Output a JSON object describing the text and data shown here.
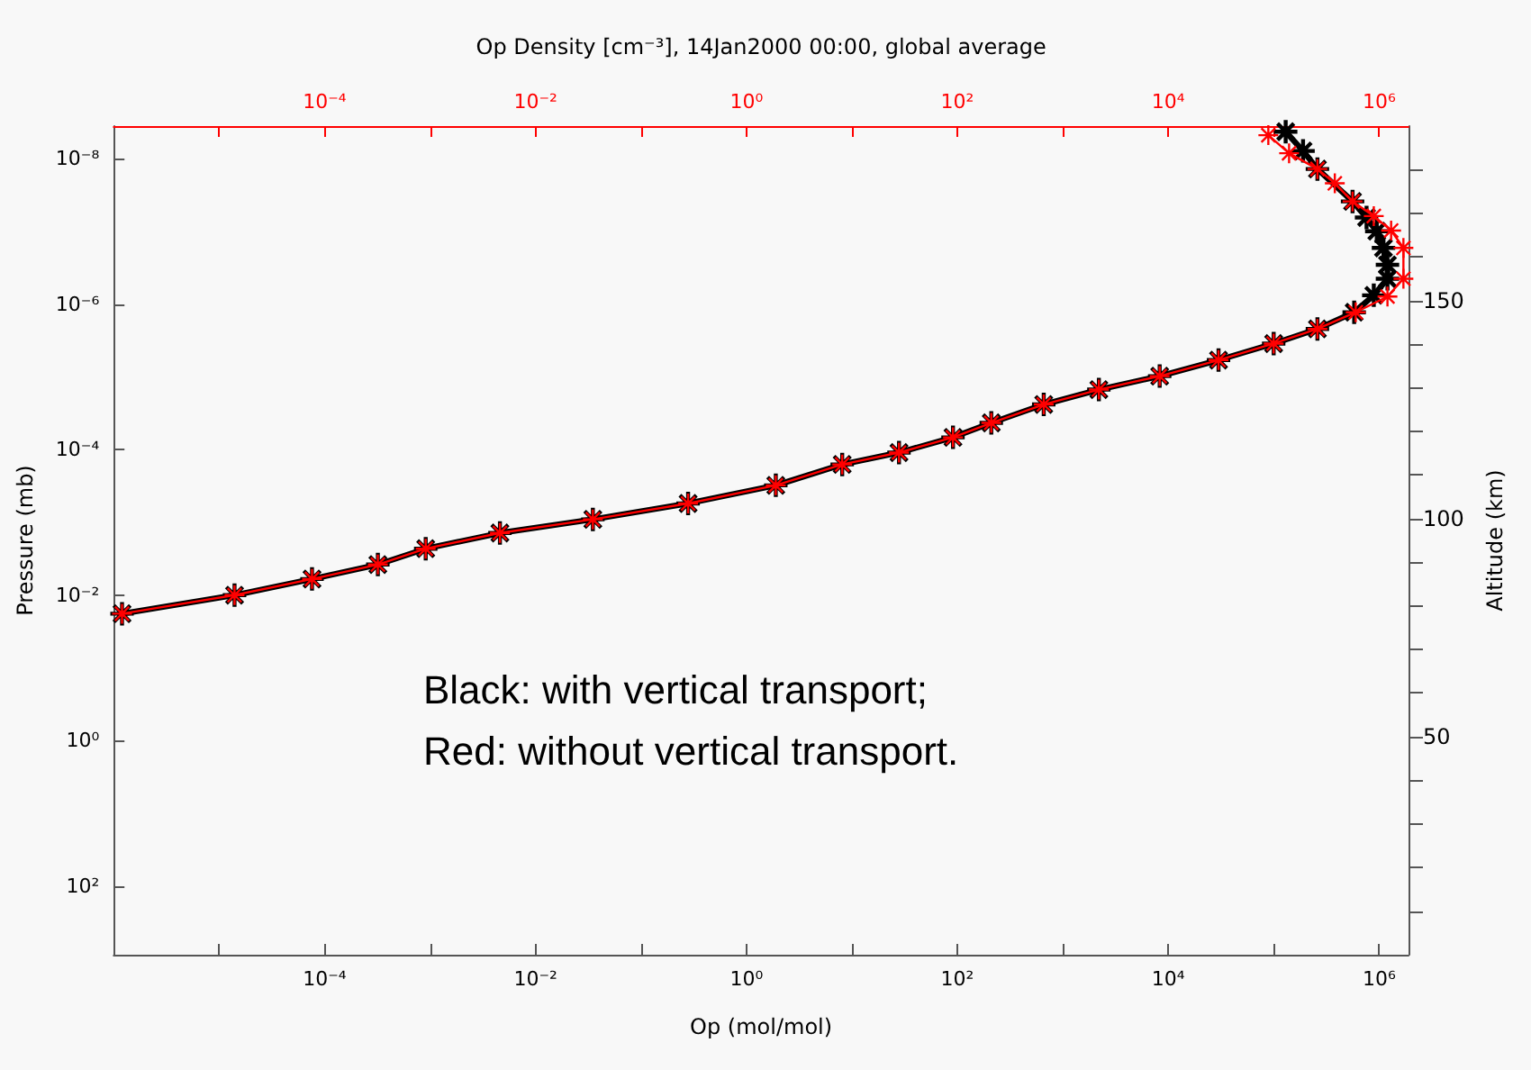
{
  "chart_data": {
    "type": "line",
    "x2label": "Op Density [cm⁻³], 14Jan2000 00:00, global average",
    "xlabel": "Op (mol/mol)",
    "ylabel": "Pressure (mb)",
    "y2label": "Altitude (km)",
    "annotations": [
      "Black: with vertical transport;",
      "Red: without vertical transport."
    ],
    "log": "xy",
    "marker": "cross",
    "line_style": "solid",
    "grid": false,
    "xlim": [
      1e-06,
      1900000
    ],
    "ylim": [
      870,
      3.6e-09
    ],
    "y2lim": [
      0,
      190
    ],
    "xticks": [
      {
        "value": 1e-05,
        "label": null
      },
      {
        "value": 0.0001,
        "label": "10⁻⁴"
      },
      {
        "value": 0.001,
        "label": null
      },
      {
        "value": 0.01,
        "label": "10⁻²"
      },
      {
        "value": 0.1,
        "label": null
      },
      {
        "value": 1,
        "label": "10⁰"
      },
      {
        "value": 10,
        "label": null
      },
      {
        "value": 100,
        "label": "10²"
      },
      {
        "value": 1000,
        "label": null
      },
      {
        "value": 10000,
        "label": "10⁴"
      },
      {
        "value": 100000,
        "label": null
      },
      {
        "value": 1000000,
        "label": "10⁶"
      }
    ],
    "yticks": [
      {
        "value": 1e-08,
        "label": "10⁻⁸"
      },
      {
        "value": 1e-06,
        "label": "10⁻⁶"
      },
      {
        "value": 0.0001,
        "label": "10⁻⁴"
      },
      {
        "value": 0.01,
        "label": "10⁻²"
      },
      {
        "value": 1,
        "label": "10⁰"
      },
      {
        "value": 100,
        "label": "10²"
      }
    ],
    "y2ticks": [
      {
        "value": 10,
        "label": null
      },
      {
        "value": 20,
        "label": null
      },
      {
        "value": 30,
        "label": null
      },
      {
        "value": 40,
        "label": null
      },
      50,
      {
        "value": 60,
        "label": null
      },
      {
        "value": 70,
        "label": null
      },
      {
        "value": 80,
        "label": null
      },
      {
        "value": 90,
        "label": null
      },
      100,
      {
        "value": 110,
        "label": null
      },
      {
        "value": 120,
        "label": null
      },
      {
        "value": 130,
        "label": null
      },
      {
        "value": 140,
        "label": null
      },
      150,
      {
        "value": 160,
        "label": null
      },
      {
        "value": 170,
        "label": null
      },
      {
        "value": 180,
        "label": null
      }
    ],
    "series": [
      {
        "color": "#000000",
        "x": [
          1.2e-06,
          1.4e-05,
          7.6e-05,
          0.00032,
          0.00091,
          0.0046,
          0.035,
          0.28,
          1.9,
          8.1,
          28,
          91,
          210,
          660,
          2200,
          8300,
          30000,
          100000,
          260000,
          580000,
          890000,
          1200000,
          1200000,
          1100000,
          950000,
          760000,
          560000,
          260000,
          190000,
          130000
        ],
        "values": [
          0.018,
          0.01,
          0.006,
          0.0038,
          0.0023,
          0.0014,
          0.00091,
          0.00055,
          0.00031,
          0.00016,
          0.00011,
          6.8e-05,
          4.3e-05,
          2.4e-05,
          1.5e-05,
          9.8e-06,
          5.9e-06,
          3.5e-06,
          2.2e-06,
          1.3e-06,
          7.6e-07,
          4.5e-07,
          2.9e-07,
          1.7e-07,
          1e-07,
          6.5e-08,
          3.9e-08,
          1.4e-08,
          7.9e-09,
          4.3e-09
        ]
      },
      {
        "color": "#ff0000",
        "x": [
          1.2e-06,
          1.4e-05,
          7.6e-05,
          0.00032,
          0.00091,
          0.0046,
          0.035,
          0.28,
          1.9,
          8.1,
          28,
          91,
          210,
          660,
          2200,
          8300,
          30000,
          100000,
          260000,
          600000,
          1200000,
          1700000,
          1700000,
          1300000,
          890000,
          560000,
          380000,
          260000,
          140000,
          89000
        ],
        "values": [
          0.018,
          0.01,
          0.006,
          0.0038,
          0.0023,
          0.0014,
          0.00091,
          0.00055,
          0.00031,
          0.00016,
          0.00011,
          6.8e-05,
          4.3e-05,
          2.4e-05,
          1.5e-05,
          9.8e-06,
          5.9e-06,
          3.5e-06,
          2.2e-06,
          1.3e-06,
          7.9e-07,
          4.5e-07,
          1.7e-07,
          9.8e-08,
          6.2e-08,
          3.9e-08,
          2.2e-08,
          1.4e-08,
          8.5e-09,
          4.8e-09
        ]
      }
    ]
  }
}
